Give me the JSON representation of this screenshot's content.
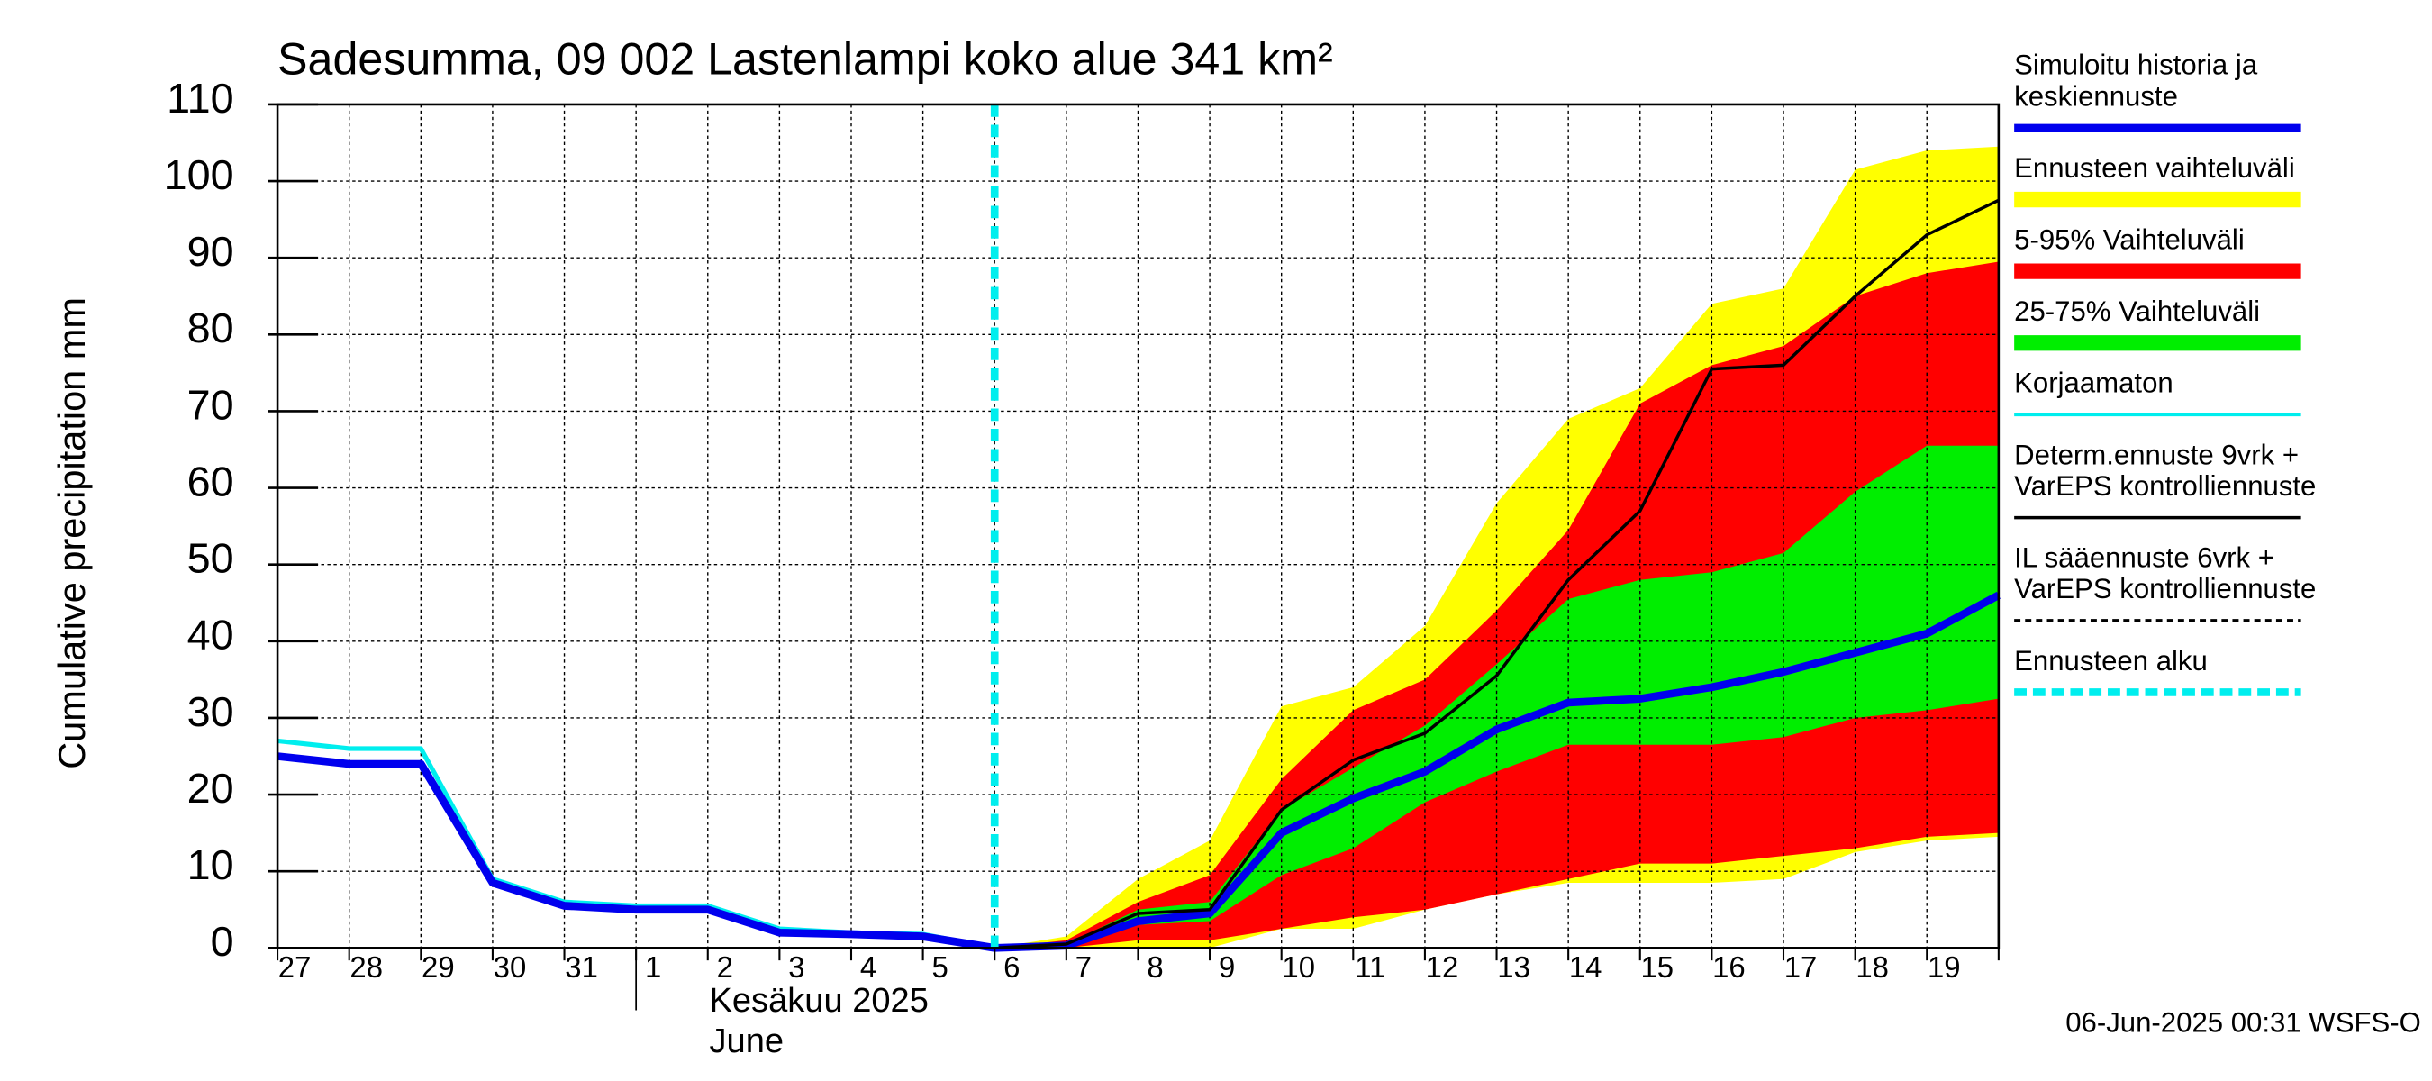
{
  "chart_data": {
    "type": "band-line",
    "title": "Sadesumma, 09 002 Lastenlampi koko alue 341 km²",
    "y_label": "Cumulative precipitation   mm",
    "month_label": [
      "Kesäkuu  2025",
      "June"
    ],
    "footer": "06-Jun-2025 00:31 WSFS-O",
    "categories": [
      "27",
      "28",
      "29",
      "30",
      "31",
      "1",
      "2",
      "3",
      "4",
      "5",
      "6",
      "7",
      "8",
      "9",
      "10",
      "11",
      "12",
      "13",
      "14",
      "15",
      "16",
      "17",
      "18",
      "19",
      null
    ],
    "forecast_start": 10,
    "month_start": 5,
    "ylim": [
      0,
      110
    ],
    "yticks": [
      0,
      10,
      20,
      30,
      40,
      50,
      60,
      70,
      80,
      90,
      100,
      110
    ],
    "grid": true,
    "bands": [
      {
        "color": "#ffff00",
        "upper": [
          null,
          null,
          null,
          null,
          null,
          null,
          null,
          null,
          null,
          null,
          0,
          1.5,
          9,
          14,
          31.5,
          34,
          42,
          58,
          69,
          73,
          84,
          86,
          101.5,
          104,
          104.5
        ],
        "lower": [
          null,
          null,
          null,
          null,
          null,
          null,
          null,
          null,
          null,
          null,
          0,
          0,
          0,
          0,
          2.5,
          2.5,
          5,
          7,
          8.5,
          8.5,
          8.5,
          9,
          12.5,
          14,
          14.5
        ]
      },
      {
        "color": "#ff0000",
        "upper": [
          null,
          null,
          null,
          null,
          null,
          null,
          null,
          null,
          null,
          null,
          0,
          1,
          6,
          9.5,
          22,
          31,
          35,
          44,
          54.5,
          71,
          76,
          78.5,
          85,
          88,
          89.5
        ],
        "lower": [
          null,
          null,
          null,
          null,
          null,
          null,
          null,
          null,
          null,
          null,
          0,
          0,
          1,
          1,
          2.5,
          4,
          5,
          7,
          9,
          11,
          11,
          12,
          13,
          14.5,
          15
        ]
      },
      {
        "color": "#00ee00",
        "upper": [
          null,
          null,
          null,
          null,
          null,
          null,
          null,
          null,
          null,
          null,
          0,
          0.5,
          5,
          6,
          18,
          23.5,
          29,
          37,
          45.5,
          48,
          49,
          51.5,
          59.5,
          65.5,
          65.5
        ],
        "lower": [
          null,
          null,
          null,
          null,
          null,
          null,
          null,
          null,
          null,
          null,
          0,
          0,
          3,
          3.5,
          9.5,
          13,
          19,
          23,
          26.5,
          26.5,
          26.5,
          27.5,
          30,
          31,
          32.5
        ]
      }
    ],
    "series": [
      {
        "color": "#00eeee",
        "width": 3,
        "values": [
          27,
          26,
          26,
          9,
          6,
          5.5,
          5.5,
          2.5,
          2,
          1.8,
          0,
          null,
          null,
          null,
          null,
          null,
          null,
          null,
          null,
          null,
          null,
          null,
          null,
          null,
          null
        ]
      },
      {
        "color": "#0000ee",
        "width": 5,
        "values": [
          25,
          24,
          24,
          8.5,
          5.5,
          5,
          5,
          2,
          1.8,
          1.5,
          0,
          0.3,
          3.5,
          4.5,
          15,
          19.5,
          23,
          28.5,
          32,
          32.5,
          34,
          36,
          38.5,
          41,
          46
        ]
      },
      {
        "color": "#000000",
        "width": 2,
        "values": [
          null,
          null,
          null,
          null,
          null,
          null,
          null,
          null,
          null,
          null,
          0,
          0.5,
          4.5,
          5,
          18,
          24.5,
          28,
          35.5,
          48,
          57,
          75.5,
          76,
          85,
          93,
          97.5
        ]
      }
    ],
    "legend": [
      {
        "name": [
          "Simuloitu historia ja",
          "keskiennuste"
        ],
        "color": "#0000ee",
        "style": "thick"
      },
      {
        "name": [
          "Ennusteen vaihteluväli"
        ],
        "color": "#ffff00",
        "style": "bar"
      },
      {
        "name": [
          "5-95% Vaihteluväli"
        ],
        "color": "#ff0000",
        "style": "bar"
      },
      {
        "name": [
          "25-75% Vaihteluväli"
        ],
        "color": "#00ee00",
        "style": "bar"
      },
      {
        "name": [
          "Korjaamaton"
        ],
        "color": "#00eeee",
        "style": "thin"
      },
      {
        "name": [
          "Determ.ennuste 9vrk +",
          "VarEPS kontrolliennuste"
        ],
        "color": "#000000",
        "style": "thin"
      },
      {
        "name": [
          "IL sääennuste 6vrk  +",
          "  VarEPS kontrolliennuste"
        ],
        "color": "#000000",
        "style": "dashed"
      },
      {
        "name": [
          "Ennusteen alku"
        ],
        "color": "#00eeee",
        "style": "dashbar"
      }
    ]
  }
}
